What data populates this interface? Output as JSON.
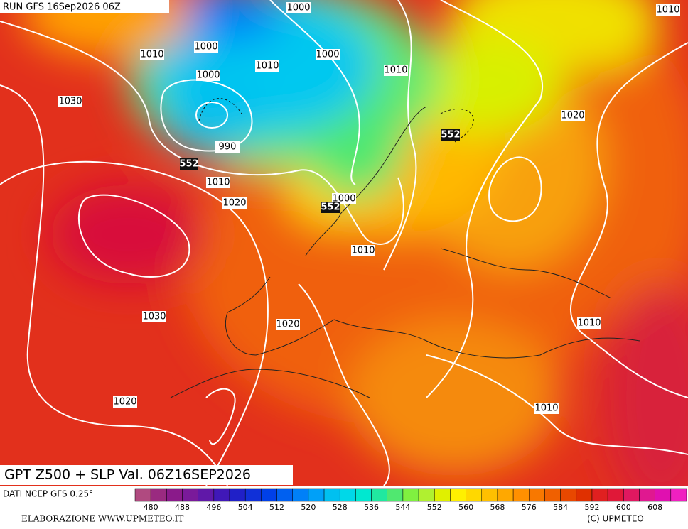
{
  "header": {
    "run": "RUN GFS 16Sep2026 06Z"
  },
  "map": {
    "isobar_labels": [
      "1000",
      "1010",
      "1010",
      "1000",
      "1010",
      "1000",
      "1010",
      "1000",
      "1030",
      "1020",
      "990",
      "1010",
      "1020",
      "1000",
      "1010",
      "1030",
      "1020",
      "1010",
      "1020",
      "1010"
    ],
    "z500_labels": [
      "552",
      "552",
      "552"
    ]
  },
  "footer": {
    "title": "GPT Z500 + SLP Val. 06Z16SEP2026",
    "source": "DATI NCEP GFS 0.25°",
    "credit": "ELABORAZIONE WWW.UPMETEO.IT",
    "copyright": "(C) UPMETEO",
    "colorbar": {
      "colors": [
        "#b04a80",
        "#9a2a80",
        "#8a1a8a",
        "#7a1a9a",
        "#6018a8",
        "#4018b8",
        "#2020c8",
        "#1030d8",
        "#0040e8",
        "#0060f0",
        "#0080f8",
        "#00a0f8",
        "#00c0f0",
        "#00d8e8",
        "#00e8d0",
        "#20e8a0",
        "#50e870",
        "#80f040",
        "#b0f030",
        "#e0f000",
        "#fff000",
        "#ffd800",
        "#ffc000",
        "#ffa800",
        "#ff9000",
        "#f87800",
        "#f06000",
        "#e84800",
        "#e03000",
        "#e02020",
        "#e01838",
        "#e01860",
        "#e01890",
        "#e010b0",
        "#f020c0"
      ],
      "ticks": [
        480,
        488,
        496,
        504,
        512,
        520,
        528,
        536,
        544,
        552,
        560,
        568,
        576,
        584,
        592,
        600,
        608
      ]
    }
  }
}
